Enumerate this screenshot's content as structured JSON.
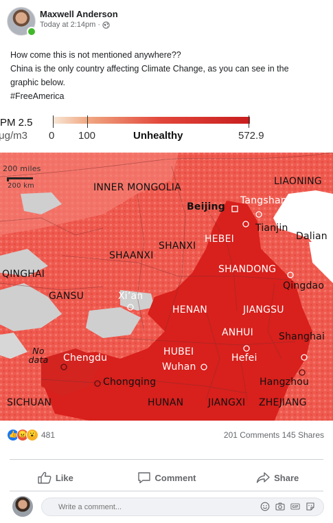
{
  "post": {
    "author": "Maxwell Anderson",
    "time": "Today at 2:14pm",
    "separator": "·",
    "privacy_icon": "globe-icon",
    "text_lines": [
      "How come this is not mentioned anywhere??",
      "China is the only country affecting Climate Change, as you can see in the",
      "graphic below.",
      "#FreeAmerica"
    ]
  },
  "legend": {
    "title": "PM 2.5",
    "unit": "μg/m3",
    "tick_0": "0",
    "tick_100": "100",
    "category": "Unhealthy",
    "max": "572.9",
    "colors": [
      "#f7e7d6",
      "#f0a781",
      "#e2463b",
      "#c81e1e"
    ]
  },
  "map": {
    "scale_miles": "200 miles",
    "scale_km": "200 km",
    "no_data_line1": "No",
    "no_data_line2": "data",
    "labels": {
      "inner_mongolia": "INNER MONGOLIA",
      "liaoning": "LIAONING",
      "beijing": "Beijing",
      "tangshan": "Tangshan",
      "tianjin": "Tianjin",
      "dalian": "Dalian",
      "hebei": "HEBEI",
      "shanxi": "SHANXI",
      "shaanxi": "SHAANXI",
      "qinghai": "QINGHAI",
      "shandong": "SHANDONG",
      "qingdao": "Qingdao",
      "gansu": "GANSU",
      "xian": "Xi’an",
      "henan": "HENAN",
      "jiangsu": "JIANGSU",
      "anhui": "ANHUI",
      "shanghai": "Shanghai",
      "hubei": "HUBEI",
      "hefei": "Hefei",
      "chengdu": "Chengdu",
      "wuhan": "Wuhan",
      "chongqing": "Chongqing",
      "hangzhou": "Hangzhou",
      "sichuan": "SICHUAN",
      "hunan": "HUNAN",
      "jiangxi": "JIANGXI",
      "zhejiang": "ZHEJIANG"
    },
    "colors": {
      "base": "#ef5a4f",
      "heavy": "#d8201c",
      "light": "#f58f86",
      "nodata": "#cfcfcf",
      "sea": "#ffffff"
    }
  },
  "engagement": {
    "reaction_icons": [
      "like-icon",
      "angry-icon",
      "wow-icon"
    ],
    "reaction_count": "481",
    "comments": "201 Comments",
    "shares": "145 Shares"
  },
  "actions": {
    "like": "Like",
    "comment": "Comment",
    "share": "Share"
  },
  "comment_box": {
    "placeholder": "Write a comment...",
    "icons": [
      "emoji-icon",
      "camera-icon",
      "gif-icon",
      "sticker-icon"
    ]
  }
}
